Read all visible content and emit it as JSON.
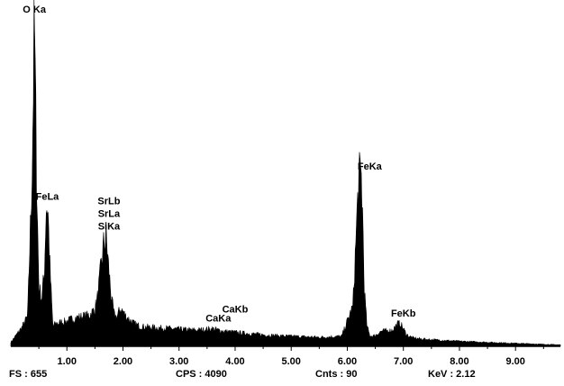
{
  "footer": {
    "fs": "FS : 655",
    "cps": "CPS : 4090",
    "cnts": "Cnts : 90",
    "kev": "KeV : 2.12"
  },
  "chart_data": {
    "type": "area",
    "title": "",
    "xlabel": "",
    "ylabel": "",
    "xlim": [
      0.0,
      9.8
    ],
    "ylim": [
      0,
      655
    ],
    "grid": false,
    "legend": "none",
    "x_ticks": [
      "1.00",
      "2.00",
      "3.00",
      "4.00",
      "5.00",
      "6.00",
      "7.00",
      "8.00",
      "9.00"
    ],
    "x_tick_values": [
      1,
      2,
      3,
      4,
      5,
      6,
      7,
      8,
      9
    ],
    "series": [
      {
        "x": [
          0.0,
          0.2,
          0.3,
          0.38,
          0.42,
          0.46,
          0.5,
          0.55,
          0.6,
          0.63,
          0.66,
          0.7,
          0.75,
          0.8,
          0.9,
          1.0,
          1.1,
          1.2,
          1.3,
          1.4,
          1.5,
          1.55,
          1.6,
          1.65,
          1.7,
          1.75,
          1.8,
          1.85,
          1.9,
          1.95,
          2.0,
          2.05,
          2.1,
          2.2,
          2.3,
          2.5,
          2.8,
          3.0,
          3.3,
          3.6,
          3.8,
          4.0,
          4.3,
          4.6,
          5.0,
          5.5,
          5.9,
          6.1,
          6.15,
          6.2,
          6.25,
          6.28,
          6.3,
          6.35,
          6.4,
          6.45,
          6.5,
          6.6,
          6.8,
          6.9,
          6.95,
          7.0,
          7.05,
          7.1,
          7.2,
          7.4,
          7.7,
          8.0,
          8.5,
          9.0,
          9.5,
          9.8
        ],
        "values": [
          8,
          38,
          60,
          350,
          655,
          340,
          120,
          95,
          150,
          280,
          280,
          150,
          40,
          45,
          48,
          50,
          55,
          58,
          60,
          62,
          75,
          100,
          150,
          200,
          220,
          150,
          90,
          60,
          60,
          75,
          70,
          60,
          55,
          45,
          40,
          38,
          36,
          34,
          32,
          35,
          30,
          28,
          25,
          22,
          20,
          18,
          20,
          80,
          200,
          330,
          340,
          240,
          120,
          40,
          22,
          20,
          22,
          30,
          32,
          45,
          45,
          35,
          25,
          20,
          16,
          14,
          12,
          10,
          8,
          6,
          4,
          3
        ]
      }
    ],
    "annotations": [
      {
        "text": "O Ka",
        "x": 0.42,
        "y": 655
      },
      {
        "text": "FeLa",
        "x": 0.65,
        "y": 280
      },
      {
        "text": "SrLb",
        "x": 1.75,
        "y": 220,
        "stack": 3
      },
      {
        "text": "SrLa",
        "x": 1.75,
        "y": 220,
        "stack": 2
      },
      {
        "text": "SiKa",
        "x": 1.75,
        "y": 220,
        "stack": 1
      },
      {
        "text": "CaKb",
        "x": 4.0,
        "y": 28,
        "stack": 2
      },
      {
        "text": "CaKa",
        "x": 3.7,
        "y": 35,
        "stack": 1
      },
      {
        "text": "FeKa",
        "x": 6.4,
        "y": 340
      },
      {
        "text": "FeKb",
        "x": 7.0,
        "y": 45
      }
    ],
    "colors": {
      "fill": "#000000",
      "axis": "#000000",
      "background": "#ffffff"
    }
  }
}
